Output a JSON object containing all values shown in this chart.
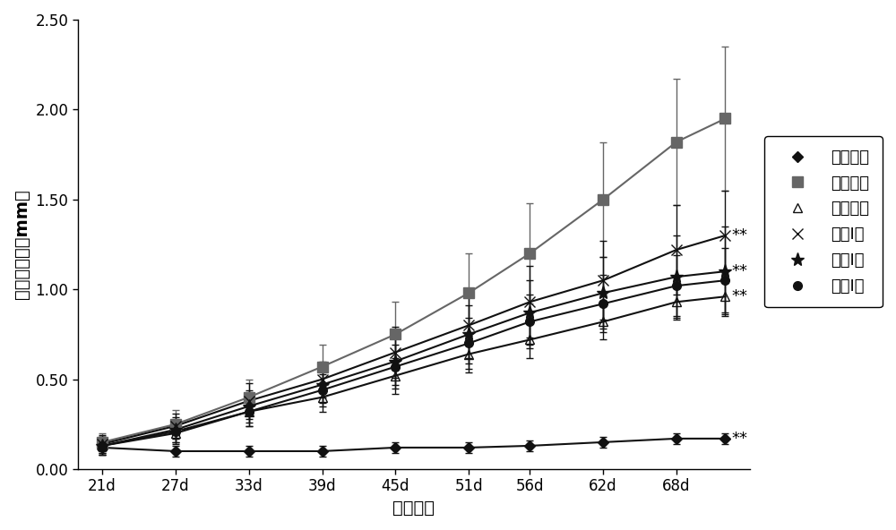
{
  "x_all": [
    21,
    27,
    33,
    39,
    45,
    51,
    56,
    62,
    68,
    72
  ],
  "xlabel": "造模天数",
  "ylabel": "足爺说胀度（mm）",
  "ylim": [
    0.0,
    2.5
  ],
  "yticks": [
    0.0,
    0.5,
    1.0,
    1.5,
    2.0,
    2.5
  ],
  "background": "#ffffff",
  "series": [
    {
      "label": "正常对照",
      "color": "#111111",
      "marker": "D",
      "markersize": 6,
      "markerfacecolor": "#111111",
      "markeredgecolor": "#111111",
      "linewidth": 1.5,
      "y": [
        0.12,
        0.1,
        0.1,
        0.1,
        0.12,
        0.12,
        0.13,
        0.15,
        0.17,
        0.17
      ],
      "yerr": [
        0.03,
        0.03,
        0.03,
        0.03,
        0.03,
        0.03,
        0.03,
        0.03,
        0.03,
        0.03
      ],
      "annotation": "**",
      "ann_y": 0.17
    },
    {
      "label": "模型对照",
      "color": "#666666",
      "marker": "s",
      "markersize": 8,
      "markerfacecolor": "#666666",
      "markeredgecolor": "#666666",
      "linewidth": 1.5,
      "y": [
        0.15,
        0.25,
        0.4,
        0.57,
        0.75,
        0.98,
        1.2,
        1.5,
        1.82,
        1.95
      ],
      "yerr": [
        0.05,
        0.08,
        0.1,
        0.12,
        0.18,
        0.22,
        0.28,
        0.32,
        0.35,
        0.4
      ],
      "annotation": null,
      "ann_y": null
    },
    {
      "label": "阳性对照",
      "color": "#111111",
      "marker": "^",
      "markersize": 7,
      "markerfacecolor": "none",
      "markeredgecolor": "#111111",
      "linewidth": 1.5,
      "y": [
        0.13,
        0.2,
        0.32,
        0.4,
        0.52,
        0.64,
        0.72,
        0.82,
        0.93,
        0.96
      ],
      "yerr": [
        0.05,
        0.06,
        0.08,
        0.08,
        0.1,
        0.1,
        0.1,
        0.1,
        0.1,
        0.1
      ],
      "annotation": "**",
      "ann_y": 0.96
    },
    {
      "label": "多肽I高",
      "color": "#111111",
      "marker": "x",
      "markersize": 9,
      "markerfacecolor": "#111111",
      "markeredgecolor": "#111111",
      "linewidth": 1.5,
      "y": [
        0.14,
        0.24,
        0.38,
        0.5,
        0.65,
        0.8,
        0.93,
        1.05,
        1.22,
        1.3
      ],
      "yerr": [
        0.05,
        0.07,
        0.1,
        0.1,
        0.14,
        0.18,
        0.2,
        0.22,
        0.25,
        0.25
      ],
      "annotation": "**",
      "ann_y": 1.3
    },
    {
      "label": "多肽I中",
      "color": "#111111",
      "marker": "*",
      "markersize": 11,
      "markerfacecolor": "#111111",
      "markeredgecolor": "#111111",
      "linewidth": 1.5,
      "y": [
        0.13,
        0.22,
        0.35,
        0.47,
        0.6,
        0.75,
        0.87,
        0.98,
        1.07,
        1.1
      ],
      "yerr": [
        0.05,
        0.07,
        0.09,
        0.1,
        0.13,
        0.16,
        0.18,
        0.2,
        0.23,
        0.25
      ],
      "annotation": "**",
      "ann_y": 1.1
    },
    {
      "label": "多肽I低",
      "color": "#111111",
      "marker": "o",
      "markersize": 7,
      "markerfacecolor": "#111111",
      "markeredgecolor": "#111111",
      "linewidth": 1.5,
      "y": [
        0.13,
        0.21,
        0.32,
        0.44,
        0.57,
        0.7,
        0.82,
        0.92,
        1.02,
        1.05
      ],
      "yerr": [
        0.05,
        0.06,
        0.08,
        0.09,
        0.12,
        0.14,
        0.15,
        0.16,
        0.17,
        0.18
      ],
      "annotation": null,
      "ann_y": null
    }
  ],
  "xtick_positions": [
    21,
    27,
    33,
    39,
    45,
    51,
    56,
    62,
    68
  ],
  "xtick_labels": [
    "21d",
    "27d",
    "33d",
    "39d",
    "45d",
    "51d",
    "56d",
    "62d",
    "68d"
  ],
  "axis_fontsize": 14,
  "tick_fontsize": 12,
  "legend_fontsize": 13,
  "ann_fontsize": 13
}
